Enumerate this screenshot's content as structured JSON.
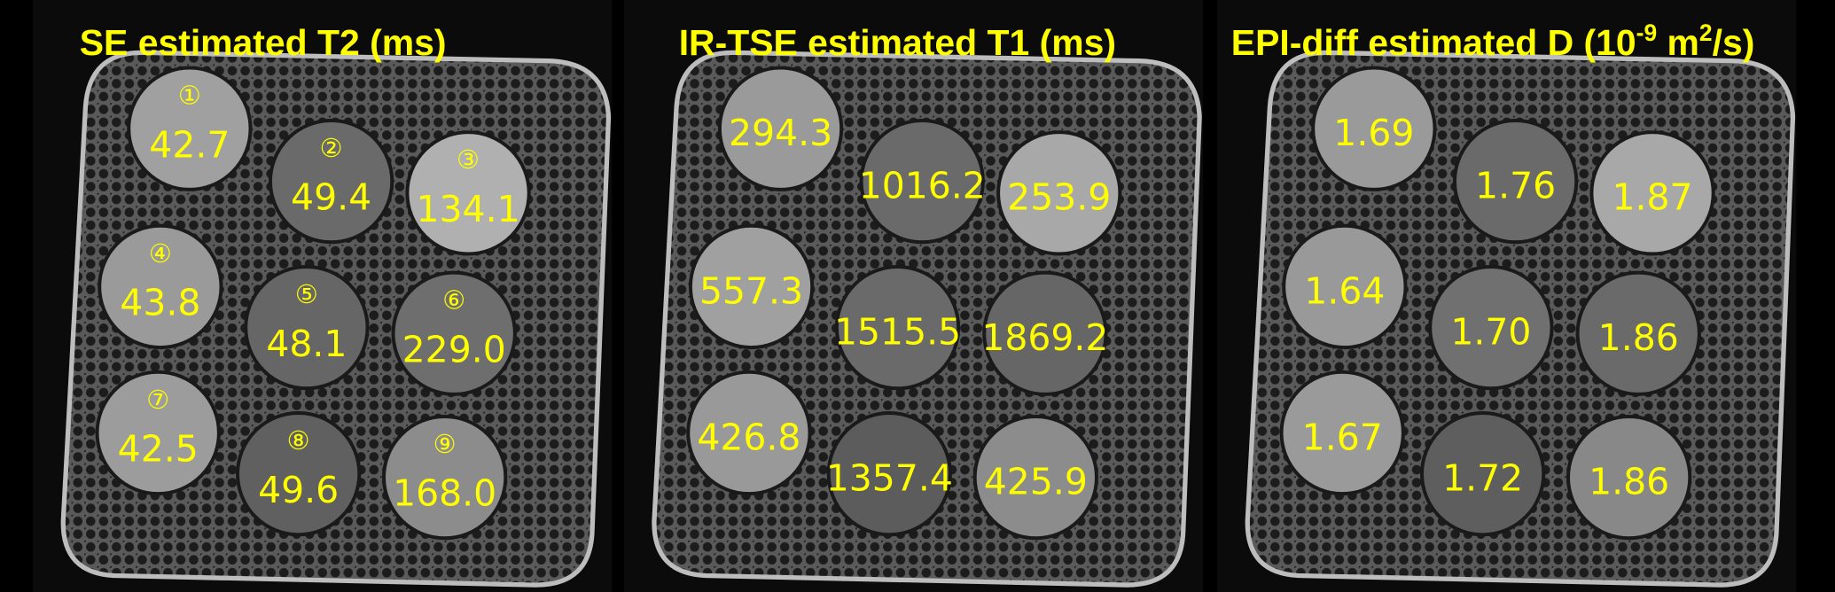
{
  "panels": [
    {
      "title": [
        "SE estimated T2 (ms)"
      ],
      "vials": [
        {
          "number": "①",
          "value": "42.7"
        },
        {
          "number": "②",
          "value": "49.4"
        },
        {
          "number": "③",
          "value": "134.1"
        },
        {
          "number": "④",
          "value": "43.8"
        },
        {
          "number": "⑤",
          "value": "48.1"
        },
        {
          "number": "⑥",
          "value": "229.0"
        },
        {
          "number": "⑦",
          "value": "42.5"
        },
        {
          "number": "⑧",
          "value": "49.6"
        },
        {
          "number": "⑨",
          "value": "168.0"
        }
      ]
    },
    {
      "title": [
        "IR-TSE estimated T1 (ms)"
      ],
      "vials": [
        {
          "value": "294.3"
        },
        {
          "value": "1016.2"
        },
        {
          "value": "253.9"
        },
        {
          "value": "557.3"
        },
        {
          "value": "1515.5"
        },
        {
          "value": "1869.2"
        },
        {
          "value": "426.8"
        },
        {
          "value": "1357.4"
        },
        {
          "value": "425.9"
        }
      ]
    },
    {
      "title": [
        "EPI-diff estimated D (10",
        "-9",
        " m",
        "2",
        "/s)"
      ],
      "vials": [
        {
          "value": "1.69"
        },
        {
          "value": "1.76"
        },
        {
          "value": "1.87"
        },
        {
          "value": "1.64"
        },
        {
          "value": "1.70"
        },
        {
          "value": "1.86"
        },
        {
          "value": "1.67"
        },
        {
          "value": "1.72"
        },
        {
          "value": "1.86"
        }
      ]
    }
  ]
}
